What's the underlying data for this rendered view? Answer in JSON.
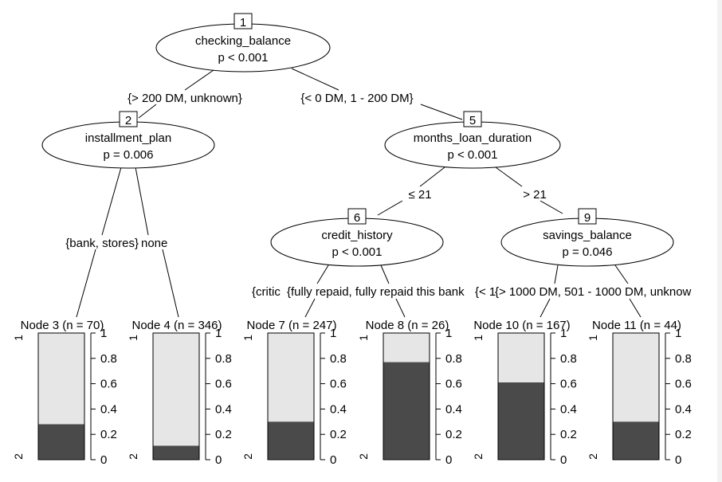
{
  "inner_nodes": [
    {
      "id": "1",
      "variable": "checking_balance",
      "pvalue": "p < 0.001"
    },
    {
      "id": "2",
      "variable": "installment_plan",
      "pvalue": "p = 0.006"
    },
    {
      "id": "5",
      "variable": "months_loan_duration",
      "pvalue": "p < 0.001"
    },
    {
      "id": "6",
      "variable": "credit_history",
      "pvalue": "p < 0.001"
    },
    {
      "id": "9",
      "variable": "savings_balance",
      "pvalue": "p = 0.046"
    }
  ],
  "edge_labels": {
    "n1_left": "{> 200 DM, unknown}",
    "n1_right": "{< 0 DM, 1 - 200 DM}",
    "n2_left": "{bank, stores}",
    "n2_right": "none",
    "n5_left": "≤ 21",
    "n5_right": "> 21",
    "n6_left": "{critic",
    "n6_right": "{fully repaid, fully repaid this bank",
    "n9_left": "{< 1",
    "n9_right": "{> 1000 DM, 501 - 1000 DM, unknow"
  },
  "terminal_nodes": [
    {
      "label": "Node 3 (n = 70)",
      "dark_fraction": 0.28
    },
    {
      "label": "Node 4 (n = 346)",
      "dark_fraction": 0.11
    },
    {
      "label": "Node 7 (n = 247)",
      "dark_fraction": 0.3
    },
    {
      "label": "Node 8 (n = 26)",
      "dark_fraction": 0.77
    },
    {
      "label": "Node 10 (n = 167)",
      "dark_fraction": 0.61
    },
    {
      "label": "Node 11 (n = 44)",
      "dark_fraction": 0.3
    }
  ],
  "bar_axis": {
    "ticks": [
      "0",
      "0.2",
      "0.4",
      "0.6",
      "0.8",
      "1"
    ],
    "class_top": "1",
    "class_bottom": "2"
  },
  "colors": {
    "dark": "#4a4a4a",
    "light": "#e6e6e6"
  }
}
